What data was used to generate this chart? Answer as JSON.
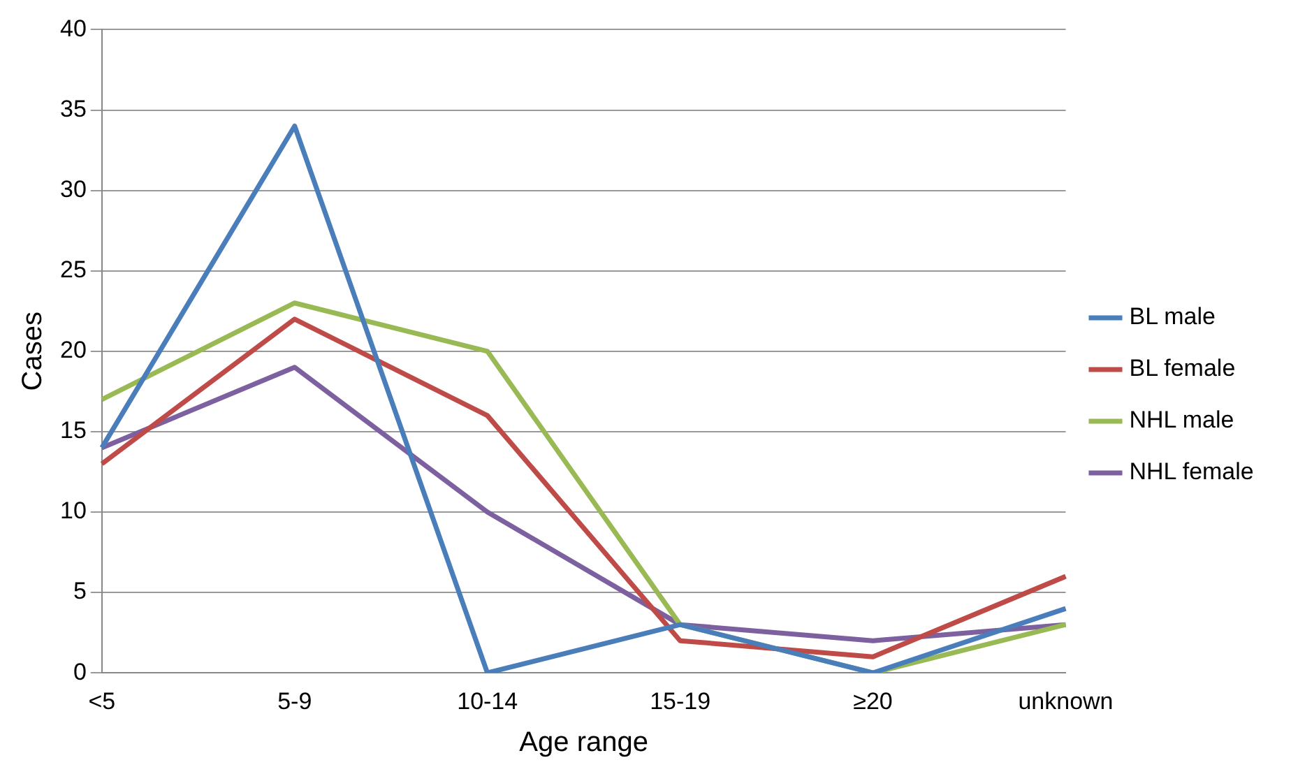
{
  "chart_data": {
    "type": "line",
    "xlabel": "Age range",
    "ylabel": "Cases",
    "categories": [
      "<5",
      "5-9",
      "10-14",
      "15-19",
      "≥20",
      "unknown"
    ],
    "series": [
      {
        "name": "BL male",
        "color": "#4a7ebb",
        "values": [
          14,
          34,
          0,
          3,
          0,
          4
        ]
      },
      {
        "name": "BL female",
        "color": "#be4b48",
        "values": [
          13,
          22,
          16,
          2,
          1,
          6
        ]
      },
      {
        "name": "NHL male",
        "color": "#98b954",
        "values": [
          17,
          23,
          20,
          3,
          0,
          3
        ]
      },
      {
        "name": "NHL female",
        "color": "#7d60a0",
        "values": [
          14,
          19,
          10,
          3,
          2,
          3
        ]
      }
    ],
    "ylim": [
      0,
      40
    ],
    "yticks": [
      0,
      5,
      10,
      15,
      20,
      25,
      30,
      35,
      40
    ],
    "grid": "y",
    "legend": "right",
    "marker": "none",
    "line_style": "solid"
  }
}
